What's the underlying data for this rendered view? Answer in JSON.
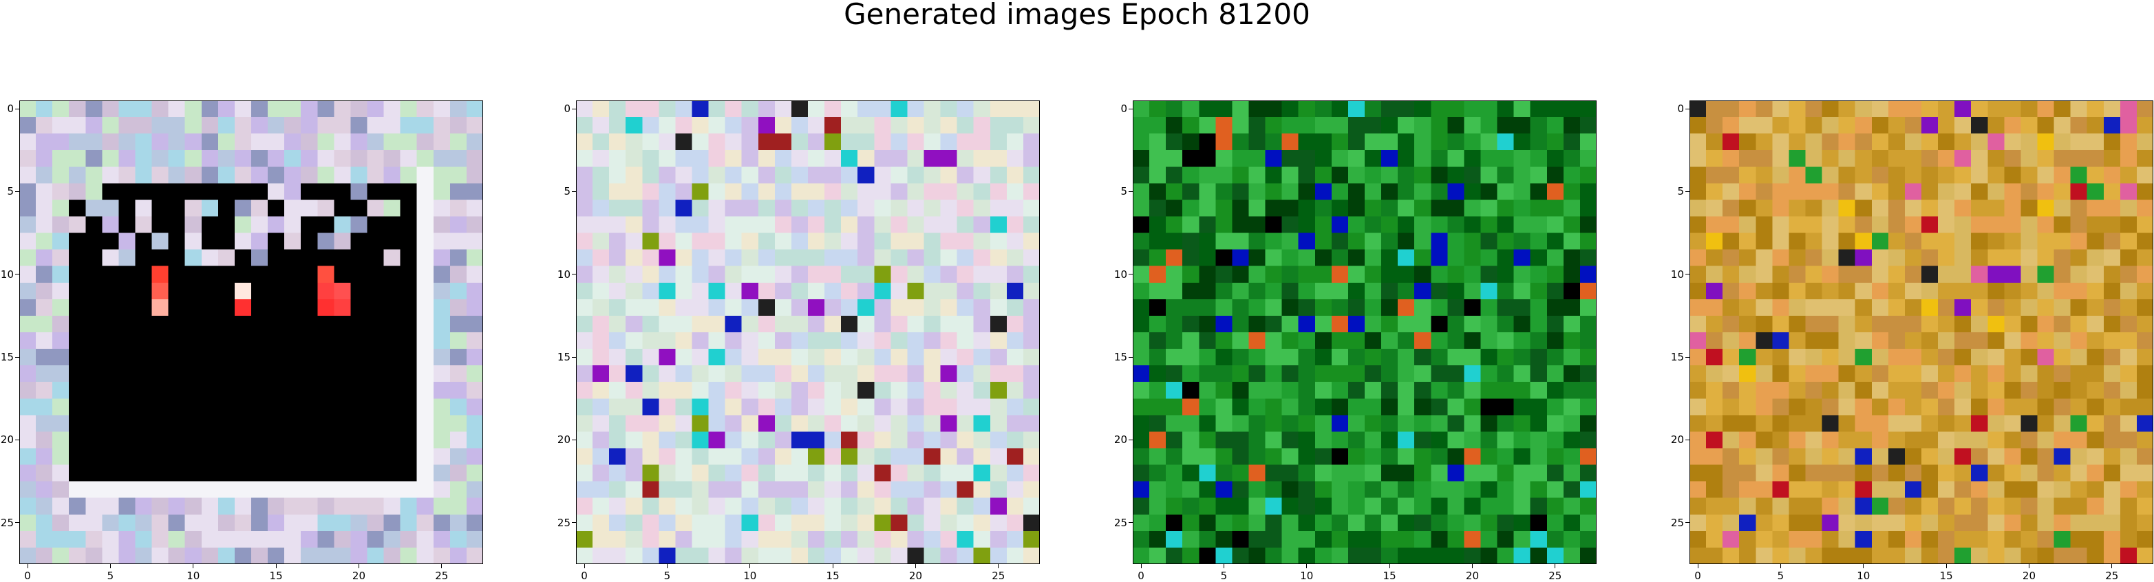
{
  "figure": {
    "title": "Generated images Epoch 81200"
  },
  "chart_data": [
    {
      "type": "heatmap",
      "title": "",
      "xlabel": "",
      "ylabel": "",
      "grid_size": [
        28,
        28
      ],
      "xlim": [
        -0.5,
        27.5
      ],
      "ylim": [
        27.5,
        -0.5
      ],
      "xticks": [
        0,
        5,
        10,
        15,
        20,
        25
      ],
      "yticks": [
        0,
        5,
        10,
        15,
        20,
        25
      ],
      "palette": [
        "#c8b8e8",
        "#a8d8e8",
        "#d0c0d8",
        "#e8e0f0",
        "#b8c8e0",
        "#c8e8c8",
        "#9098c0",
        "#e0d0e0"
      ],
      "center_color": "#000000",
      "bright_pixels": [
        [
          "#ff4030",
          [
            8,
            10
          ]
        ],
        [
          "#ff6050",
          [
            8,
            11
          ]
        ],
        [
          "#ffb0a0",
          [
            8,
            12
          ]
        ],
        [
          "#ff3030",
          [
            13,
            12
          ]
        ],
        [
          "#ffe8e0",
          [
            13,
            11
          ]
        ],
        [
          "#ff5040",
          [
            18,
            10
          ]
        ],
        [
          "#ff4040",
          [
            18,
            11
          ]
        ],
        [
          "#ff5050",
          [
            19,
            11
          ]
        ],
        [
          "#ff3030",
          [
            18,
            12
          ]
        ],
        [
          "#ff4040",
          [
            19,
            12
          ]
        ]
      ]
    },
    {
      "type": "heatmap",
      "title": "",
      "xlabel": "",
      "ylabel": "",
      "grid_size": [
        28,
        28
      ],
      "xlim": [
        -0.5,
        27.5
      ],
      "ylim": [
        27.5,
        -0.5
      ],
      "xticks": [
        0,
        5,
        10,
        15,
        20,
        25
      ],
      "yticks": [
        0,
        5,
        10,
        15,
        20,
        25
      ],
      "palette": [
        "#e8e0f0",
        "#d8e8d8",
        "#f0d0e0",
        "#c8d8f0",
        "#e0f0e8",
        "#f0e8d0",
        "#d0c0e8",
        "#c0e0d8"
      ],
      "accent_colors": [
        "#202020",
        "#1020c0",
        "#a02020",
        "#80a010",
        "#9010c0",
        "#20d0d0"
      ]
    },
    {
      "type": "heatmap",
      "title": "",
      "xlabel": "",
      "ylabel": "",
      "grid_size": [
        28,
        28
      ],
      "xlim": [
        -0.5,
        27.5
      ],
      "ylim": [
        27.5,
        -0.5
      ],
      "xticks": [
        0,
        5,
        10,
        15,
        20,
        25
      ],
      "yticks": [
        0,
        5,
        10,
        15,
        20,
        25
      ],
      "palette": [
        "#108020",
        "#20a030",
        "#006010",
        "#30b040",
        "#0a5a1a",
        "#18901f",
        "#40c050",
        "#004008"
      ],
      "accent_colors": [
        "#000000",
        "#20d0d0",
        "#e06020",
        "#0010c0"
      ]
    },
    {
      "type": "heatmap",
      "title": "",
      "xlabel": "",
      "ylabel": "",
      "grid_size": [
        28,
        28
      ],
      "xlim": [
        -0.5,
        27.5
      ],
      "ylim": [
        27.5,
        -0.5
      ],
      "xticks": [
        0,
        5,
        10,
        15,
        20,
        25
      ],
      "yticks": [
        0,
        5,
        10,
        15,
        20,
        25
      ],
      "palette": [
        "#d0a030",
        "#e0b040",
        "#c09020",
        "#e8a050",
        "#b08010",
        "#d8b860",
        "#c89040",
        "#e0c070"
      ],
      "accent_colors": [
        "#1020c0",
        "#c01020",
        "#e060a0",
        "#20a030",
        "#202020",
        "#f0c010",
        "#8010c0"
      ]
    }
  ]
}
